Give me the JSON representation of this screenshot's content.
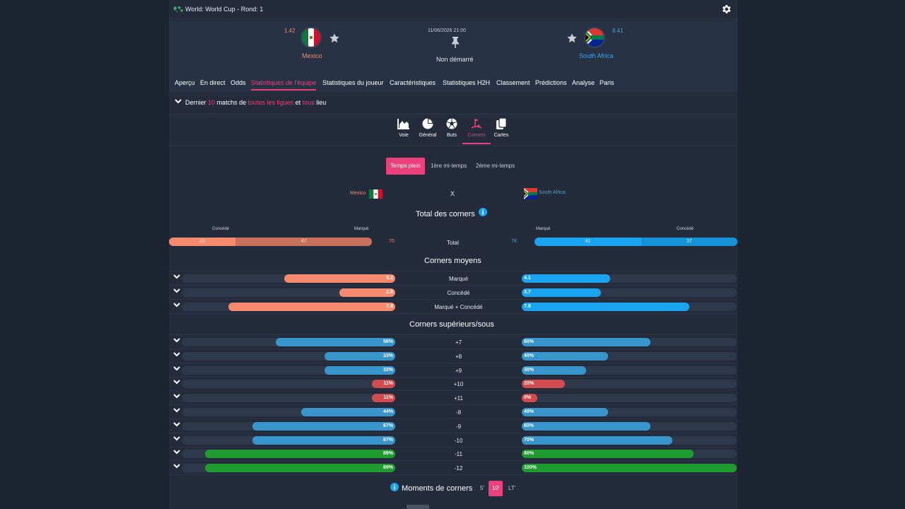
{
  "competition": {
    "title": "World: World Cup -  Rond: 1"
  },
  "match": {
    "date": "11/06/2026 21:00",
    "status": "Non démarré",
    "home": {
      "name": "Mexico",
      "odds": "1.42"
    },
    "away": {
      "name": "South Africa",
      "odds": "8.41"
    }
  },
  "nav_tabs": [
    "Aperçu",
    "En direct",
    "Odds",
    "Statistiques de l'équipe",
    "Statistiques du joueur",
    "Caractéristiques",
    "Statistiques H2H",
    "Classement",
    "Prédictions",
    "Analyse",
    "Paris"
  ],
  "active_tab": "Statistiques de l'équipe",
  "filter": {
    "prefix": "Dernier",
    "count": "10",
    "mid": "matchs de",
    "leagues": "toutes les ligues",
    "and": "et",
    "venue": "tous",
    "suffix": "lieu"
  },
  "stat_tabs": [
    {
      "label": "Voie",
      "icon": "area-chart-icon"
    },
    {
      "label": "Général",
      "icon": "pie-chart-icon"
    },
    {
      "label": "Buts",
      "icon": "soccer-ball-icon"
    },
    {
      "label": "Corners",
      "icon": "corner-flag-icon"
    },
    {
      "label": "Cartes",
      "icon": "cards-icon"
    }
  ],
  "active_stat_tab": "Corners",
  "periods": [
    "Temps plein",
    "1ère mi-temps",
    "2ème mi-temps"
  ],
  "active_period": "Temps plein",
  "versus": {
    "home": "Mexico",
    "x": "X",
    "away": "South Africa"
  },
  "total_corners": {
    "title": "Total des corners",
    "labels": {
      "conceded": "Concédé",
      "scored": "Marqué",
      "center": "Total"
    },
    "home": {
      "conceded": 23,
      "scored": 47,
      "total": "70"
    },
    "away": {
      "scored": 41,
      "conceded": 37,
      "total": "78"
    }
  },
  "average_corners": {
    "title": "Corners moyens",
    "max": 10,
    "rows": [
      {
        "label": "Marqué",
        "home": "5.2",
        "away": "4.1"
      },
      {
        "label": "Concédé",
        "home": "2.6",
        "away": "3.7"
      },
      {
        "label": "Marqué + Concédé",
        "home": "7.8",
        "away": "7.8"
      }
    ]
  },
  "over_under": {
    "title": "Corners supérieurs/sous",
    "rows": [
      {
        "label": "+7",
        "home": "56%",
        "away": "60%"
      },
      {
        "label": "+8",
        "home": "33%",
        "away": "40%"
      },
      {
        "label": "+9",
        "home": "33%",
        "away": "30%"
      },
      {
        "label": "+10",
        "home": "11%",
        "away": "20%"
      },
      {
        "label": "+11",
        "home": "11%",
        "away": "0%"
      },
      {
        "label": "-8",
        "home": "44%",
        "away": "40%"
      },
      {
        "label": "-9",
        "home": "67%",
        "away": "60%"
      },
      {
        "label": "-10",
        "home": "67%",
        "away": "70%"
      },
      {
        "label": "-11",
        "home": "89%",
        "away": "80%"
      },
      {
        "label": "-12",
        "home": "89%",
        "away": "100%"
      }
    ]
  },
  "moments": {
    "title": "Moments de corners",
    "options": [
      "5'",
      "10'",
      "LT'"
    ],
    "active": "10'"
  },
  "colors": {
    "accent": "#ec407a",
    "home": "#f58a6e",
    "away": "#1aa3ef",
    "blue_bar": "#3896cc",
    "red_bar": "#d24b4f",
    "green_bar": "#1f9c2f"
  }
}
